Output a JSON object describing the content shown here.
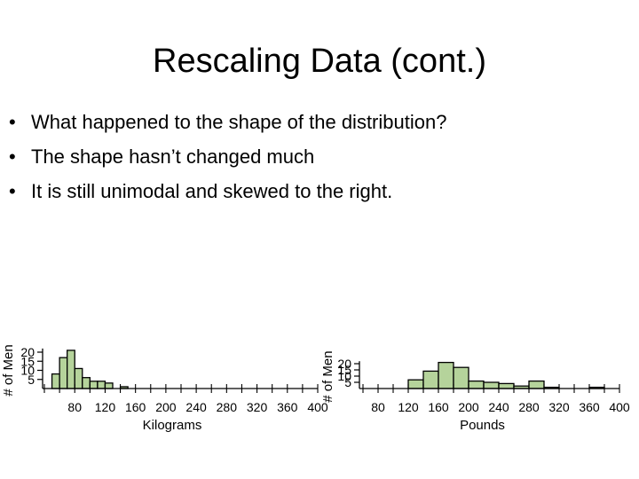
{
  "slide": {
    "title": "Rescaling Data (cont.)",
    "bullets": [
      "What happened to the shape of the distribution?",
      "The shape hasn’t changed much",
      "It is still unimodal and skewed to the right."
    ]
  },
  "colors": {
    "bar_fill": "#b5d39b",
    "bar_stroke": "#000000",
    "axis": "#000000"
  },
  "chart_data": [
    {
      "type": "bar",
      "title": "",
      "xlabel": "Kilograms",
      "ylabel": "# of Men",
      "xlim": [
        40,
        400
      ],
      "ylim": [
        0,
        22
      ],
      "bin_width": 10,
      "bin_starts": [
        50,
        60,
        70,
        80,
        90,
        100,
        110,
        120,
        130,
        140
      ],
      "values": [
        8,
        17,
        21,
        11,
        6,
        4,
        4,
        3,
        0,
        1
      ],
      "xticks": [
        80,
        120,
        160,
        200,
        240,
        280,
        320,
        360,
        400
      ],
      "xtick_labels": [
        "80",
        "120",
        "160",
        "200",
        "240",
        "280",
        "320",
        "360",
        "400"
      ],
      "yticks": [
        5,
        10,
        15,
        20
      ],
      "ytick_labels": [
        "5",
        "10",
        "15",
        "20"
      ]
    },
    {
      "type": "bar",
      "title": "",
      "xlabel": "Pounds",
      "ylabel": "# of Men",
      "xlim": [
        60,
        400
      ],
      "ylim": [
        0,
        22
      ],
      "bin_width": 20,
      "bin_starts": [
        120,
        140,
        160,
        180,
        200,
        220,
        240,
        260,
        280,
        300,
        320,
        340,
        360
      ],
      "values": [
        7,
        14,
        21,
        17,
        6,
        5,
        4,
        2,
        6,
        1,
        0,
        0,
        1
      ],
      "xticks": [
        80,
        120,
        160,
        200,
        240,
        280,
        320,
        360,
        400
      ],
      "xtick_labels": [
        "80",
        "120",
        "160",
        "200",
        "240",
        "280",
        "320",
        "360",
        "400"
      ],
      "yticks": [
        5,
        10,
        15,
        20
      ],
      "ytick_labels": [
        "5",
        "10",
        "15",
        "20"
      ]
    }
  ]
}
